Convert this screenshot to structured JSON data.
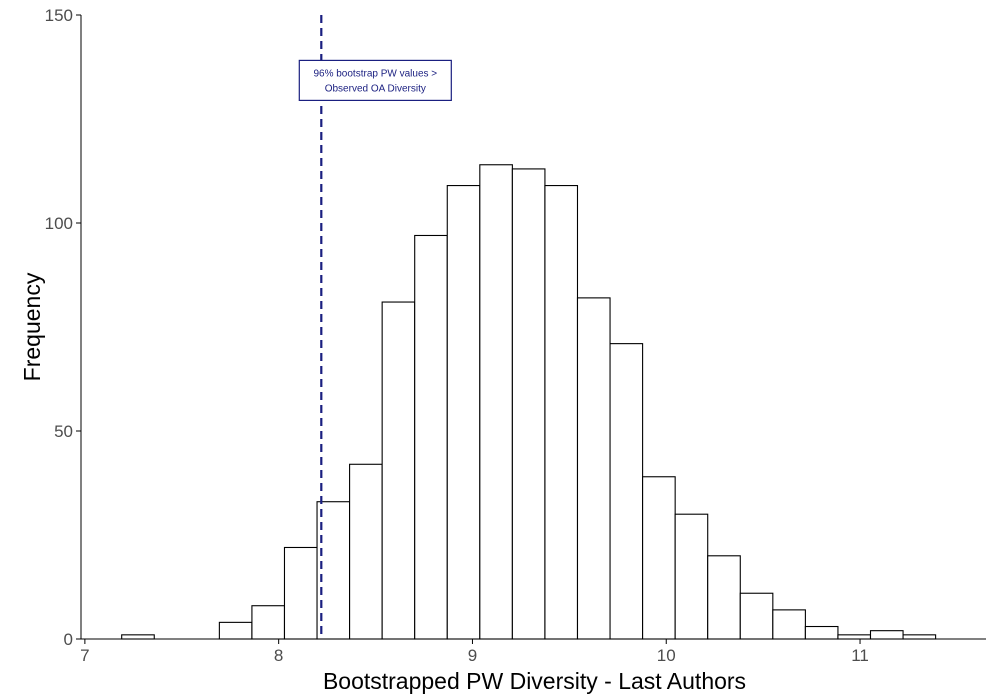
{
  "chart_data": {
    "type": "bar",
    "subtype": "histogram",
    "xlabel": "Bootstrapped PW Diversity - Last Authors",
    "ylabel": "Frequency",
    "xlim": [
      6.98,
      11.65
    ],
    "ylim": [
      0,
      150
    ],
    "x_ticks": [
      7,
      8,
      9,
      10,
      11
    ],
    "x_tick_labels": [
      "7",
      "8",
      "9",
      "10",
      "11"
    ],
    "y_ticks": [
      0,
      50,
      100,
      150
    ],
    "y_tick_labels": [
      "0",
      "50",
      "100",
      "150"
    ],
    "bin_width": 0.168,
    "bins": [
      {
        "x_start": 7.19,
        "x_end": 7.358,
        "count": 1
      },
      {
        "x_start": 7.358,
        "x_end": 7.526,
        "count": 0
      },
      {
        "x_start": 7.526,
        "x_end": 7.694,
        "count": 0
      },
      {
        "x_start": 7.694,
        "x_end": 7.862,
        "count": 4
      },
      {
        "x_start": 7.862,
        "x_end": 8.03,
        "count": 8
      },
      {
        "x_start": 8.03,
        "x_end": 8.198,
        "count": 22
      },
      {
        "x_start": 8.198,
        "x_end": 8.366,
        "count": 33
      },
      {
        "x_start": 8.366,
        "x_end": 8.534,
        "count": 42
      },
      {
        "x_start": 8.534,
        "x_end": 8.702,
        "count": 81
      },
      {
        "x_start": 8.702,
        "x_end": 8.87,
        "count": 97
      },
      {
        "x_start": 8.87,
        "x_end": 9.038,
        "count": 109
      },
      {
        "x_start": 9.038,
        "x_end": 9.206,
        "count": 114
      },
      {
        "x_start": 9.206,
        "x_end": 9.374,
        "count": 113
      },
      {
        "x_start": 9.374,
        "x_end": 9.542,
        "count": 109
      },
      {
        "x_start": 9.542,
        "x_end": 9.71,
        "count": 82
      },
      {
        "x_start": 9.71,
        "x_end": 9.878,
        "count": 71
      },
      {
        "x_start": 9.878,
        "x_end": 10.046,
        "count": 39
      },
      {
        "x_start": 10.046,
        "x_end": 10.214,
        "count": 30
      },
      {
        "x_start": 10.214,
        "x_end": 10.382,
        "count": 20
      },
      {
        "x_start": 10.382,
        "x_end": 10.55,
        "count": 11
      },
      {
        "x_start": 10.55,
        "x_end": 10.718,
        "count": 7
      },
      {
        "x_start": 10.718,
        "x_end": 10.886,
        "count": 3
      },
      {
        "x_start": 10.886,
        "x_end": 11.054,
        "count": 1
      },
      {
        "x_start": 11.054,
        "x_end": 11.222,
        "count": 2
      },
      {
        "x_start": 11.222,
        "x_end": 11.39,
        "count": 1
      }
    ],
    "reference_line": {
      "x": 8.22,
      "style": "dashed",
      "color": "#1a1f80"
    },
    "annotation": {
      "lines": [
        "96% bootstrap PW values >",
        "Observed OA Diversity"
      ],
      "x": 8.22,
      "y": 135,
      "color": "#1a1f80"
    },
    "bar_fill": "#ffffff",
    "bar_stroke": "#000000",
    "grid": false
  }
}
